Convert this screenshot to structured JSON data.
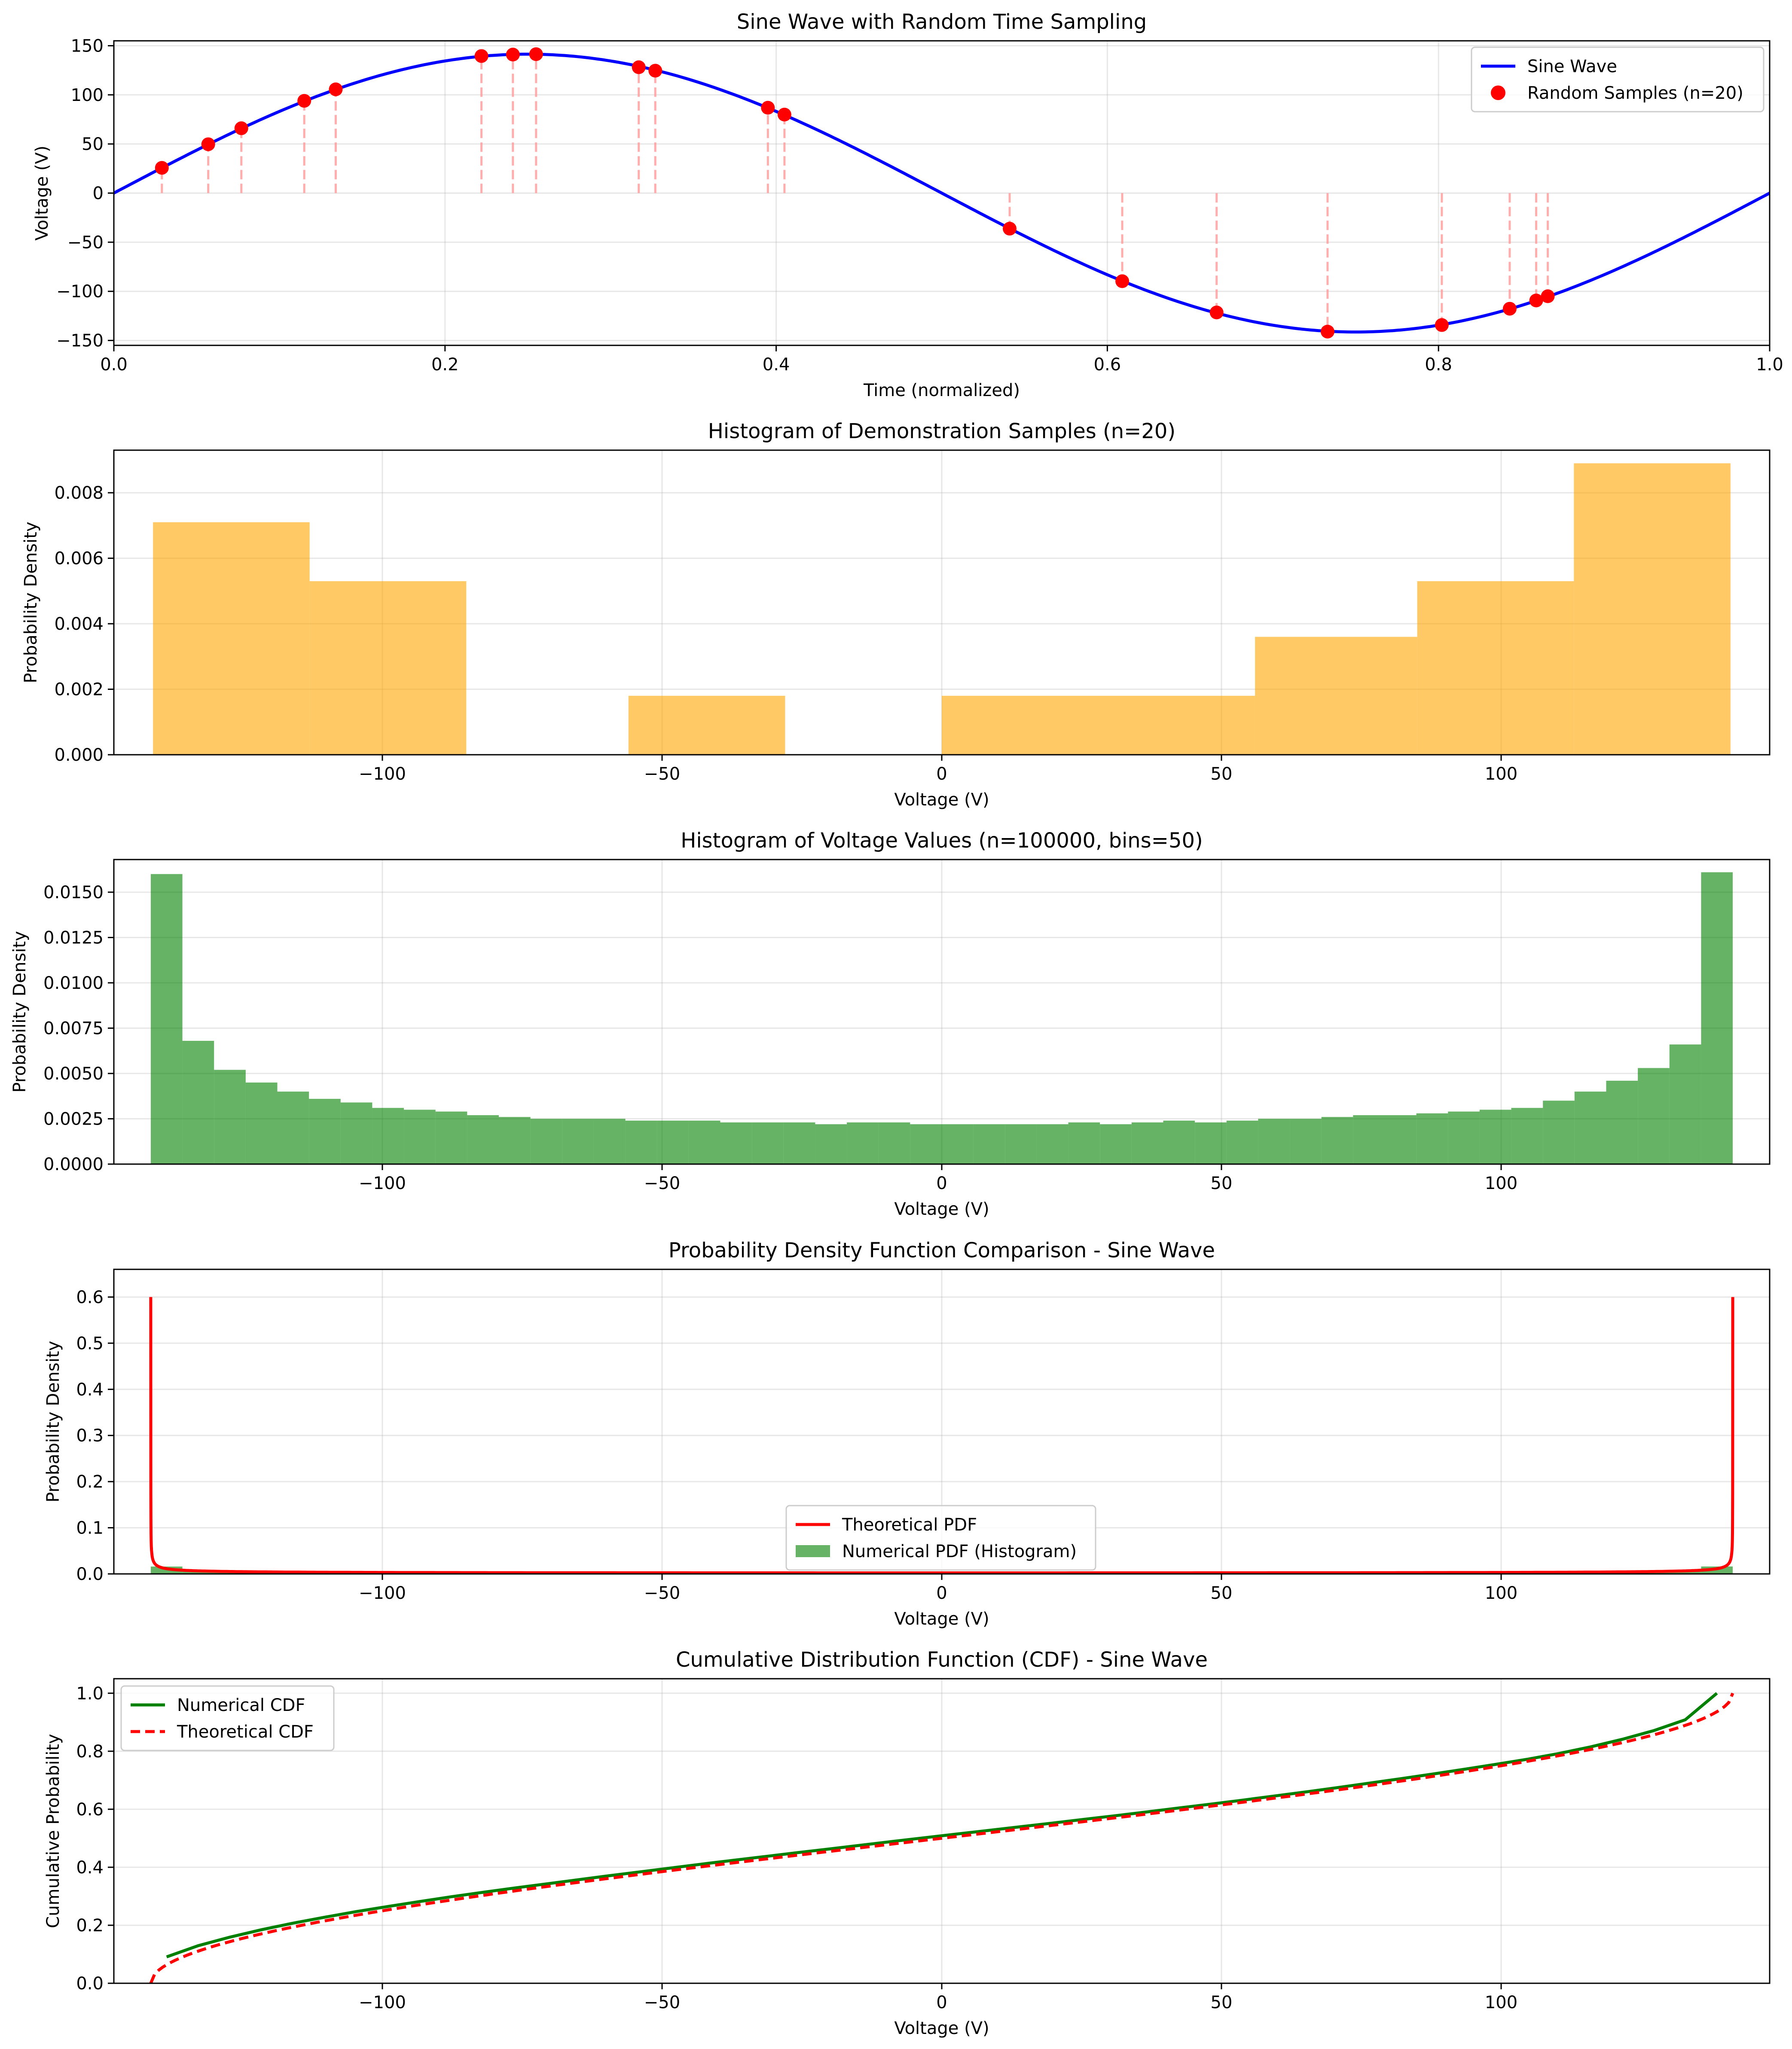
{
  "chart_data": [
    {
      "id": "p1",
      "type": "line",
      "title": "Sine Wave with Random Time Sampling",
      "xlabel": "Time (normalized)",
      "ylabel": "Voltage (V)",
      "xlim": [
        0.0,
        1.0
      ],
      "ylim": [
        -155,
        155
      ],
      "xticks": [
        0.0,
        0.2,
        0.4,
        0.6,
        0.8,
        1.0
      ],
      "xtick_labels": [
        "0.0",
        "0.2",
        "0.4",
        "0.6",
        "0.8",
        "1.0"
      ],
      "yticks": [
        -150,
        -100,
        -50,
        0,
        50,
        100,
        150
      ],
      "ytick_labels": [
        "−150",
        "−100",
        "−50",
        "0",
        "50",
        "100",
        "150"
      ],
      "grid": true,
      "legend_position": "upper right",
      "series": [
        {
          "name": "Sine Wave",
          "kind": "line",
          "color": "#0000ff",
          "amplitude": 141.4,
          "period": 1.0
        },
        {
          "name": "Random Samples (n=20)",
          "kind": "scatter",
          "color": "#ff0000",
          "stem_color": "#ff9999",
          "x": [
            0.029,
            0.057,
            0.077,
            0.115,
            0.134,
            0.222,
            0.241,
            0.255,
            0.317,
            0.327,
            0.395,
            0.405,
            0.541,
            0.609,
            0.666,
            0.733,
            0.802,
            0.843,
            0.859,
            0.866
          ],
          "y": [
            25.7,
            49.7,
            66.0,
            93.9,
            105.6,
            139.5,
            141.0,
            141.4,
            128.1,
            124.6,
            86.9,
            79.9,
            -36.2,
            -89.7,
            -121.5,
            -141.0,
            -134.3,
            -117.7,
            -109.3,
            -105.0
          ]
        }
      ]
    },
    {
      "id": "p2",
      "type": "bar",
      "title": "Histogram of Demonstration Samples (n=20)",
      "xlabel": "Voltage (V)",
      "ylabel": "Probability Density",
      "xlim": [
        -148,
        148
      ],
      "ylim": [
        0,
        0.0093
      ],
      "xticks": [
        -100,
        -50,
        0,
        50,
        100
      ],
      "xtick_labels": [
        "−100",
        "−50",
        "0",
        "50",
        "100"
      ],
      "yticks": [
        0,
        0.002,
        0.004,
        0.006,
        0.008
      ],
      "ytick_labels": [
        "0.000",
        "0.002",
        "0.004",
        "0.006",
        "0.008"
      ],
      "grid": true,
      "color": "#ffa500",
      "opacity": 0.6,
      "bin_edges": [
        -141,
        -113,
        -85,
        -56,
        -28,
        0,
        28,
        56,
        85,
        113,
        141
      ],
      "values": [
        0.0071,
        0.0053,
        0.0,
        0.0018,
        0.0,
        0.0018,
        0.0018,
        0.0036,
        0.0053,
        0.0089
      ]
    },
    {
      "id": "p3",
      "type": "bar",
      "title": "Histogram of Voltage Values (n=100000, bins=50)",
      "xlabel": "Voltage (V)",
      "ylabel": "Probability Density",
      "xlim": [
        -148,
        148
      ],
      "ylim": [
        0,
        0.0168
      ],
      "xticks": [
        -100,
        -50,
        0,
        50,
        100
      ],
      "xtick_labels": [
        "−100",
        "−50",
        "0",
        "50",
        "100"
      ],
      "yticks": [
        0,
        0.0025,
        0.005,
        0.0075,
        0.01,
        0.0125,
        0.015
      ],
      "ytick_labels": [
        "0.0000",
        "0.0025",
        "0.0050",
        "0.0075",
        "0.0100",
        "0.0125",
        "0.0150"
      ],
      "grid": true,
      "color": "#008000",
      "opacity": 0.6,
      "bin_range": [
        -141.4,
        141.4
      ],
      "values": [
        0.016,
        0.0068,
        0.0052,
        0.0045,
        0.004,
        0.0036,
        0.0034,
        0.0031,
        0.003,
        0.0029,
        0.0027,
        0.0026,
        0.0025,
        0.0025,
        0.0025,
        0.0024,
        0.0024,
        0.0024,
        0.0023,
        0.0023,
        0.0023,
        0.0022,
        0.0023,
        0.0023,
        0.0022,
        0.0022,
        0.0022,
        0.0022,
        0.0022,
        0.0023,
        0.0022,
        0.0023,
        0.0024,
        0.0023,
        0.0024,
        0.0025,
        0.0025,
        0.0026,
        0.0027,
        0.0027,
        0.0028,
        0.0029,
        0.003,
        0.0031,
        0.0035,
        0.004,
        0.0046,
        0.0053,
        0.0066,
        0.0161
      ]
    },
    {
      "id": "p4",
      "type": "line",
      "title": "Probability Density Function Comparison - Sine Wave",
      "xlabel": "Voltage (V)",
      "ylabel": "Probability Density",
      "xlim": [
        -148,
        148
      ],
      "ylim": [
        0,
        0.66
      ],
      "xticks": [
        -100,
        -50,
        0,
        50,
        100
      ],
      "xtick_labels": [
        "−100",
        "−50",
        "0",
        "50",
        "100"
      ],
      "yticks": [
        0,
        0.1,
        0.2,
        0.3,
        0.4,
        0.5,
        0.6
      ],
      "ytick_labels": [
        "0.0",
        "0.1",
        "0.2",
        "0.3",
        "0.4",
        "0.5",
        "0.6"
      ],
      "grid": true,
      "legend_position": "lower center",
      "series": [
        {
          "name": "Theoretical PDF",
          "kind": "line",
          "color": "#ff0000",
          "amplitude": 141.4,
          "peak": 0.6
        },
        {
          "name": "Numerical PDF (Histogram)",
          "kind": "bar",
          "color": "#008000",
          "opacity": 0.6,
          "source": "p3"
        }
      ]
    },
    {
      "id": "p5",
      "type": "line",
      "title": "Cumulative Distribution Function (CDF) - Sine Wave",
      "xlabel": "Voltage (V)",
      "ylabel": "Cumulative Probability",
      "xlim": [
        -148,
        148
      ],
      "ylim": [
        0,
        1.05
      ],
      "xticks": [
        -100,
        -50,
        0,
        50,
        100
      ],
      "xtick_labels": [
        "−100",
        "−50",
        "0",
        "50",
        "100"
      ],
      "yticks": [
        0,
        0.2,
        0.4,
        0.6,
        0.8,
        1.0
      ],
      "ytick_labels": [
        "0.0",
        "0.2",
        "0.4",
        "0.6",
        "0.8",
        "1.0"
      ],
      "grid": true,
      "legend_position": "upper left",
      "series": [
        {
          "name": "Numerical CDF",
          "kind": "line",
          "color": "#008000",
          "style": "solid",
          "source": "p3"
        },
        {
          "name": "Theoretical CDF",
          "kind": "line",
          "color": "#ff0000",
          "style": "dashed",
          "amplitude": 141.4
        }
      ]
    }
  ]
}
